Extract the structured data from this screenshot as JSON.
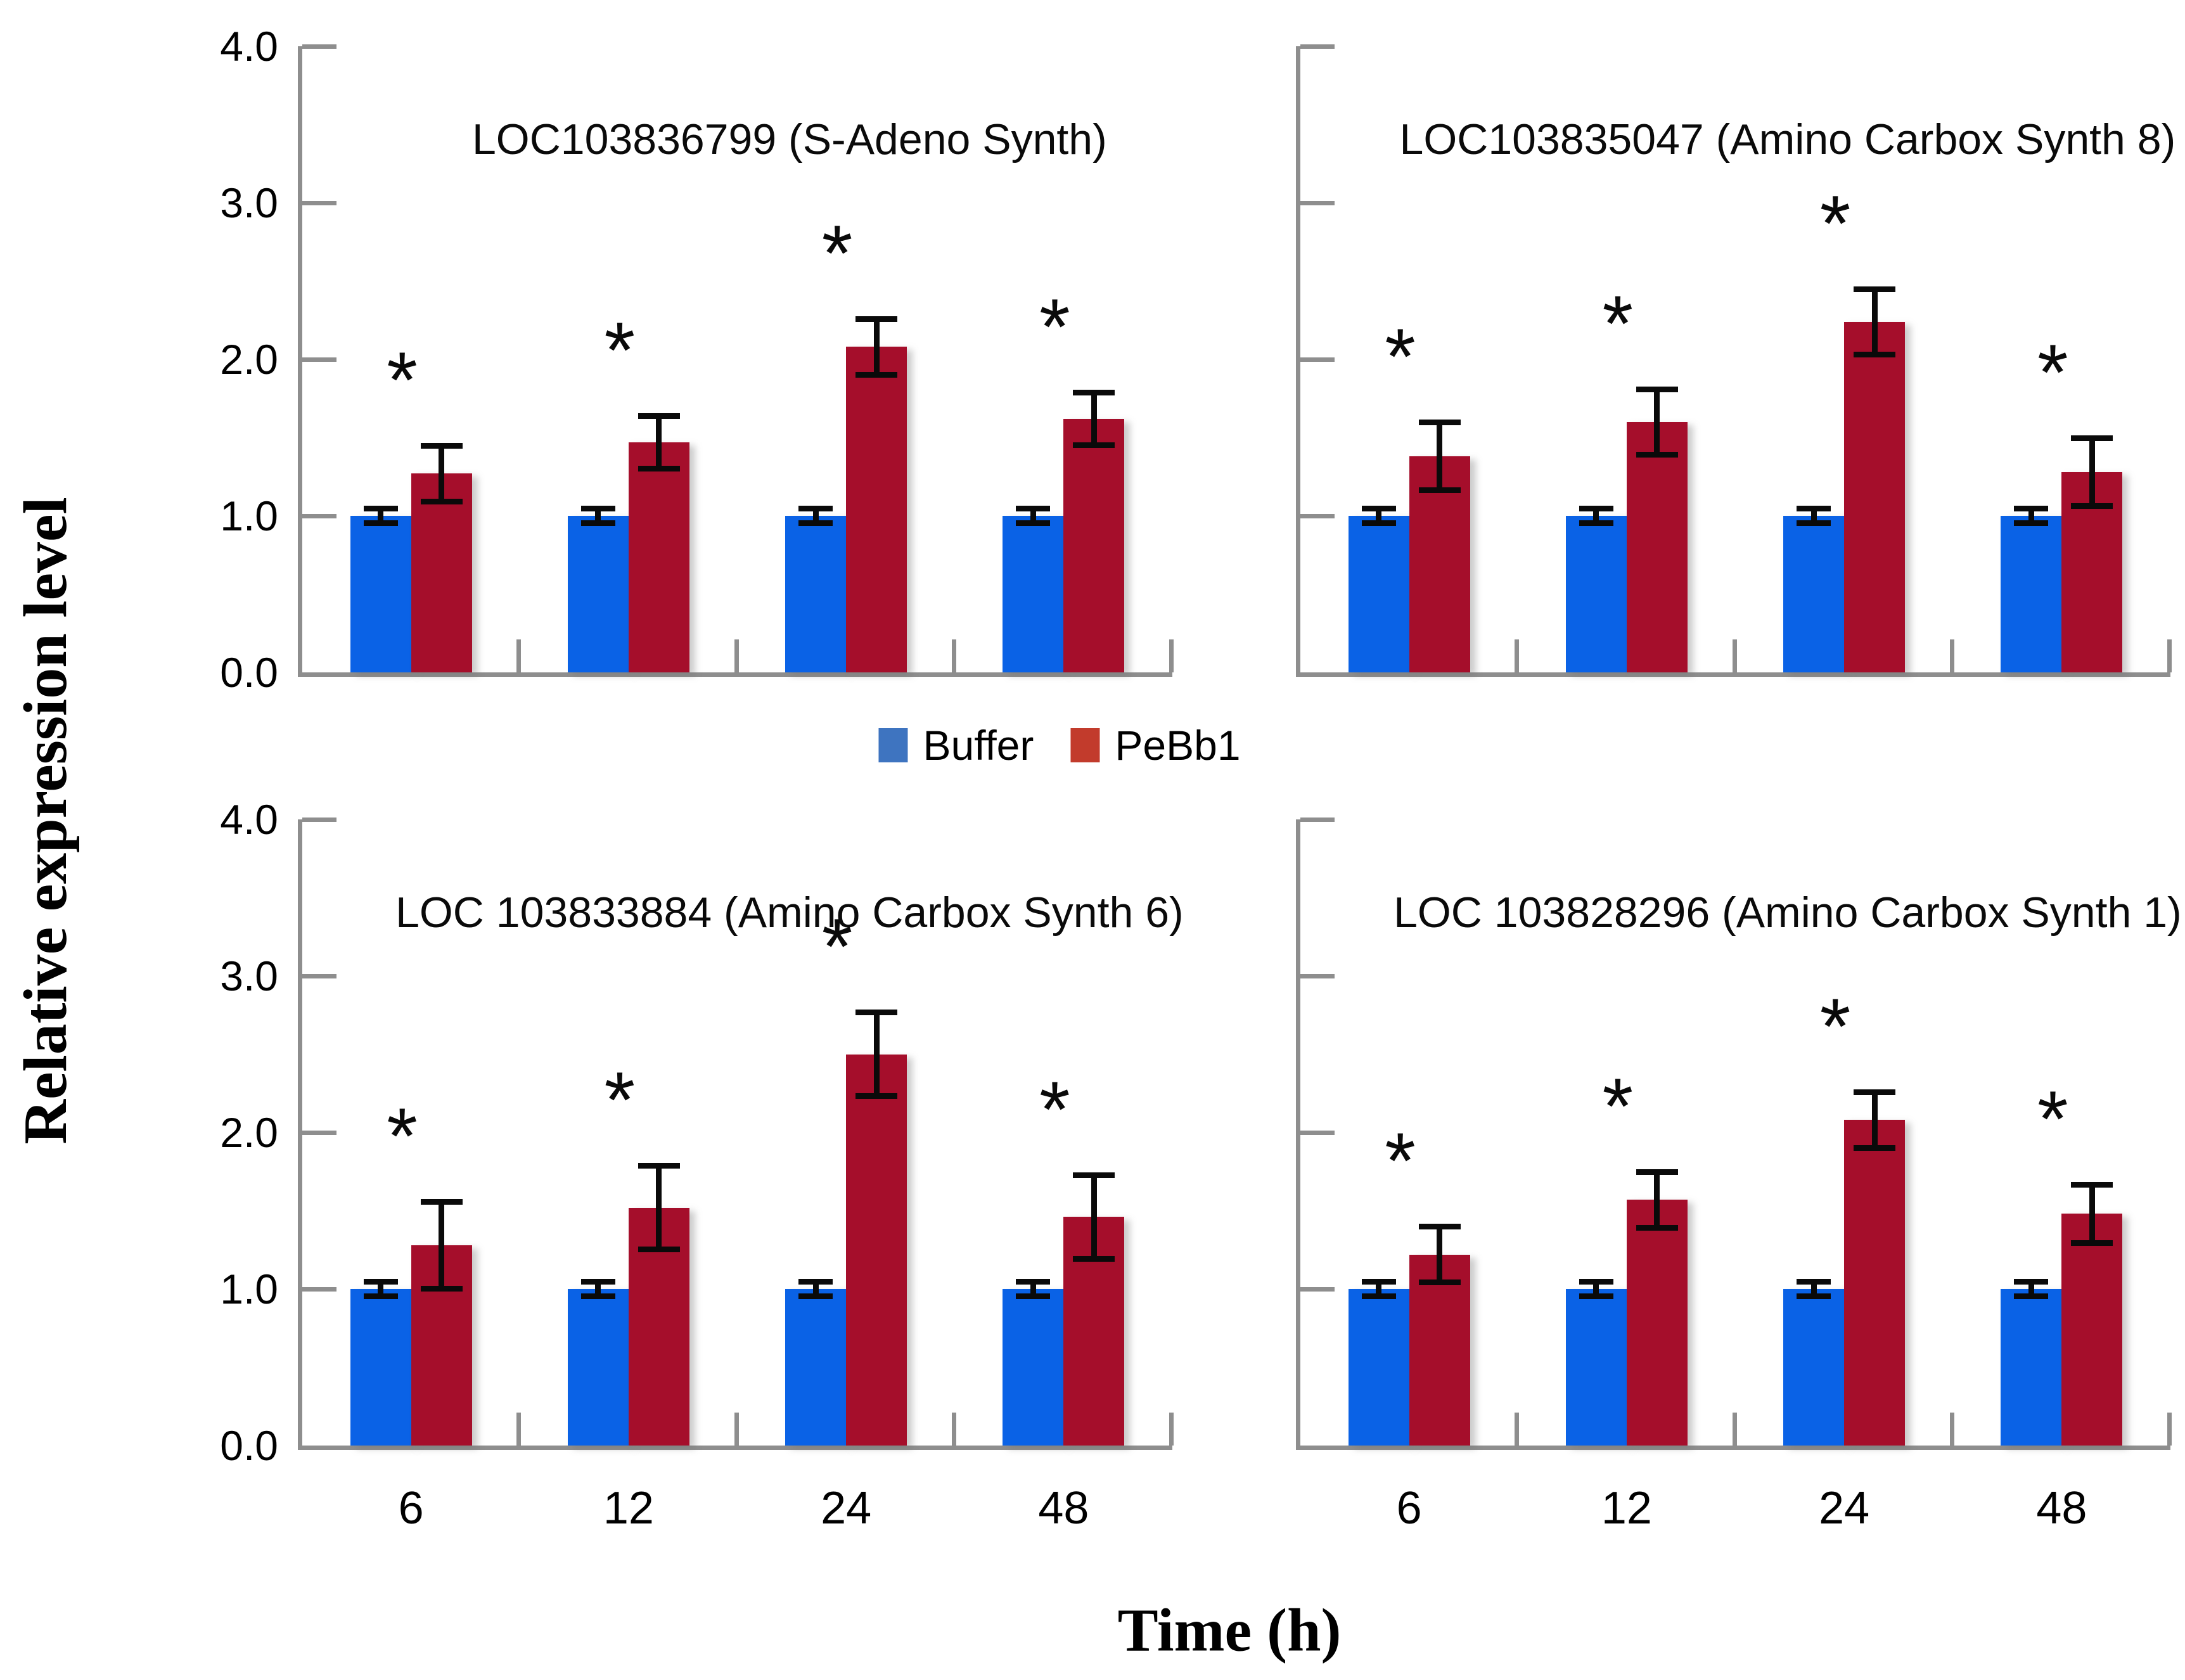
{
  "figure": {
    "y_axis_label": "Relative expression level",
    "x_axis_label": "Time (h)",
    "y_tick_labels": [
      "0.0",
      "1.0",
      "2.0",
      "3.0",
      "4.0"
    ],
    "significance_marker": "*",
    "axis_color": "#8e8e8e",
    "bar_blue": "#0a62e6",
    "bar_red": "#a50e2b"
  },
  "legend": {
    "items": [
      {
        "label": "Buffer",
        "color": "#3e74c0"
      },
      {
        "label": "PeBb1",
        "color": "#c23b2c"
      }
    ]
  },
  "chart_data": [
    {
      "type": "bar",
      "position": "top-left",
      "title": "LOC103836799 (S-Adeno Synth)",
      "categories": [
        "6",
        "12",
        "24",
        "48"
      ],
      "ylim": [
        0,
        4
      ],
      "yticks": [
        0,
        1,
        2,
        3,
        4
      ],
      "show_y_tick_labels": true,
      "show_x_tick_labels": false,
      "series": [
        {
          "name": "Buffer",
          "color": "#0a62e6",
          "values": [
            1.0,
            1.0,
            1.0,
            1.0
          ],
          "errors": [
            0.05,
            0.05,
            0.05,
            0.05
          ],
          "significant": [
            false,
            false,
            false,
            false
          ]
        },
        {
          "name": "PeBb1",
          "color": "#a50e2b",
          "values": [
            1.27,
            1.47,
            2.08,
            1.62
          ],
          "errors": [
            0.18,
            0.17,
            0.18,
            0.17
          ],
          "significant": [
            true,
            true,
            true,
            true
          ]
        }
      ]
    },
    {
      "type": "bar",
      "position": "top-right",
      "title": "LOC103835047 (Amino Carbox Synth 8)",
      "categories": [
        "6",
        "12",
        "24",
        "48"
      ],
      "ylim": [
        0,
        4
      ],
      "yticks": [
        0,
        1,
        2,
        3,
        4
      ],
      "show_y_tick_labels": false,
      "show_x_tick_labels": false,
      "series": [
        {
          "name": "Buffer",
          "color": "#0a62e6",
          "values": [
            1.0,
            1.0,
            1.0,
            1.0
          ],
          "errors": [
            0.05,
            0.05,
            0.05,
            0.05
          ],
          "significant": [
            false,
            false,
            false,
            false
          ]
        },
        {
          "name": "PeBb1",
          "color": "#a50e2b",
          "values": [
            1.38,
            1.6,
            2.24,
            1.28
          ],
          "errors": [
            0.22,
            0.21,
            0.21,
            0.22
          ],
          "significant": [
            true,
            true,
            true,
            true
          ]
        }
      ]
    },
    {
      "type": "bar",
      "position": "bottom-left",
      "title": "LOC 103833884 (Amino Carbox Synth 6)",
      "categories": [
        "6",
        "12",
        "24",
        "48"
      ],
      "ylim": [
        0,
        4
      ],
      "yticks": [
        0,
        1,
        2,
        3,
        4
      ],
      "show_y_tick_labels": true,
      "show_x_tick_labels": true,
      "series": [
        {
          "name": "Buffer",
          "color": "#0a62e6",
          "values": [
            1.0,
            1.0,
            1.0,
            1.0
          ],
          "errors": [
            0.05,
            0.05,
            0.05,
            0.05
          ],
          "significant": [
            false,
            false,
            false,
            false
          ]
        },
        {
          "name": "PeBb1",
          "color": "#a50e2b",
          "values": [
            1.28,
            1.52,
            2.5,
            1.46
          ],
          "errors": [
            0.28,
            0.27,
            0.27,
            0.27
          ],
          "significant": [
            true,
            true,
            true,
            true
          ]
        }
      ]
    },
    {
      "type": "bar",
      "position": "bottom-right",
      "title": "LOC 103828296 (Amino Carbox Synth 1)",
      "categories": [
        "6",
        "12",
        "24",
        "48"
      ],
      "ylim": [
        0,
        4
      ],
      "yticks": [
        0,
        1,
        2,
        3,
        4
      ],
      "show_y_tick_labels": false,
      "show_x_tick_labels": true,
      "series": [
        {
          "name": "Buffer",
          "color": "#0a62e6",
          "values": [
            1.0,
            1.0,
            1.0,
            1.0
          ],
          "errors": [
            0.05,
            0.05,
            0.05,
            0.05
          ],
          "significant": [
            false,
            false,
            false,
            false
          ]
        },
        {
          "name": "PeBb1",
          "color": "#a50e2b",
          "values": [
            1.22,
            1.57,
            2.08,
            1.48
          ],
          "errors": [
            0.18,
            0.18,
            0.18,
            0.19
          ],
          "significant": [
            true,
            true,
            true,
            true
          ]
        }
      ]
    }
  ]
}
